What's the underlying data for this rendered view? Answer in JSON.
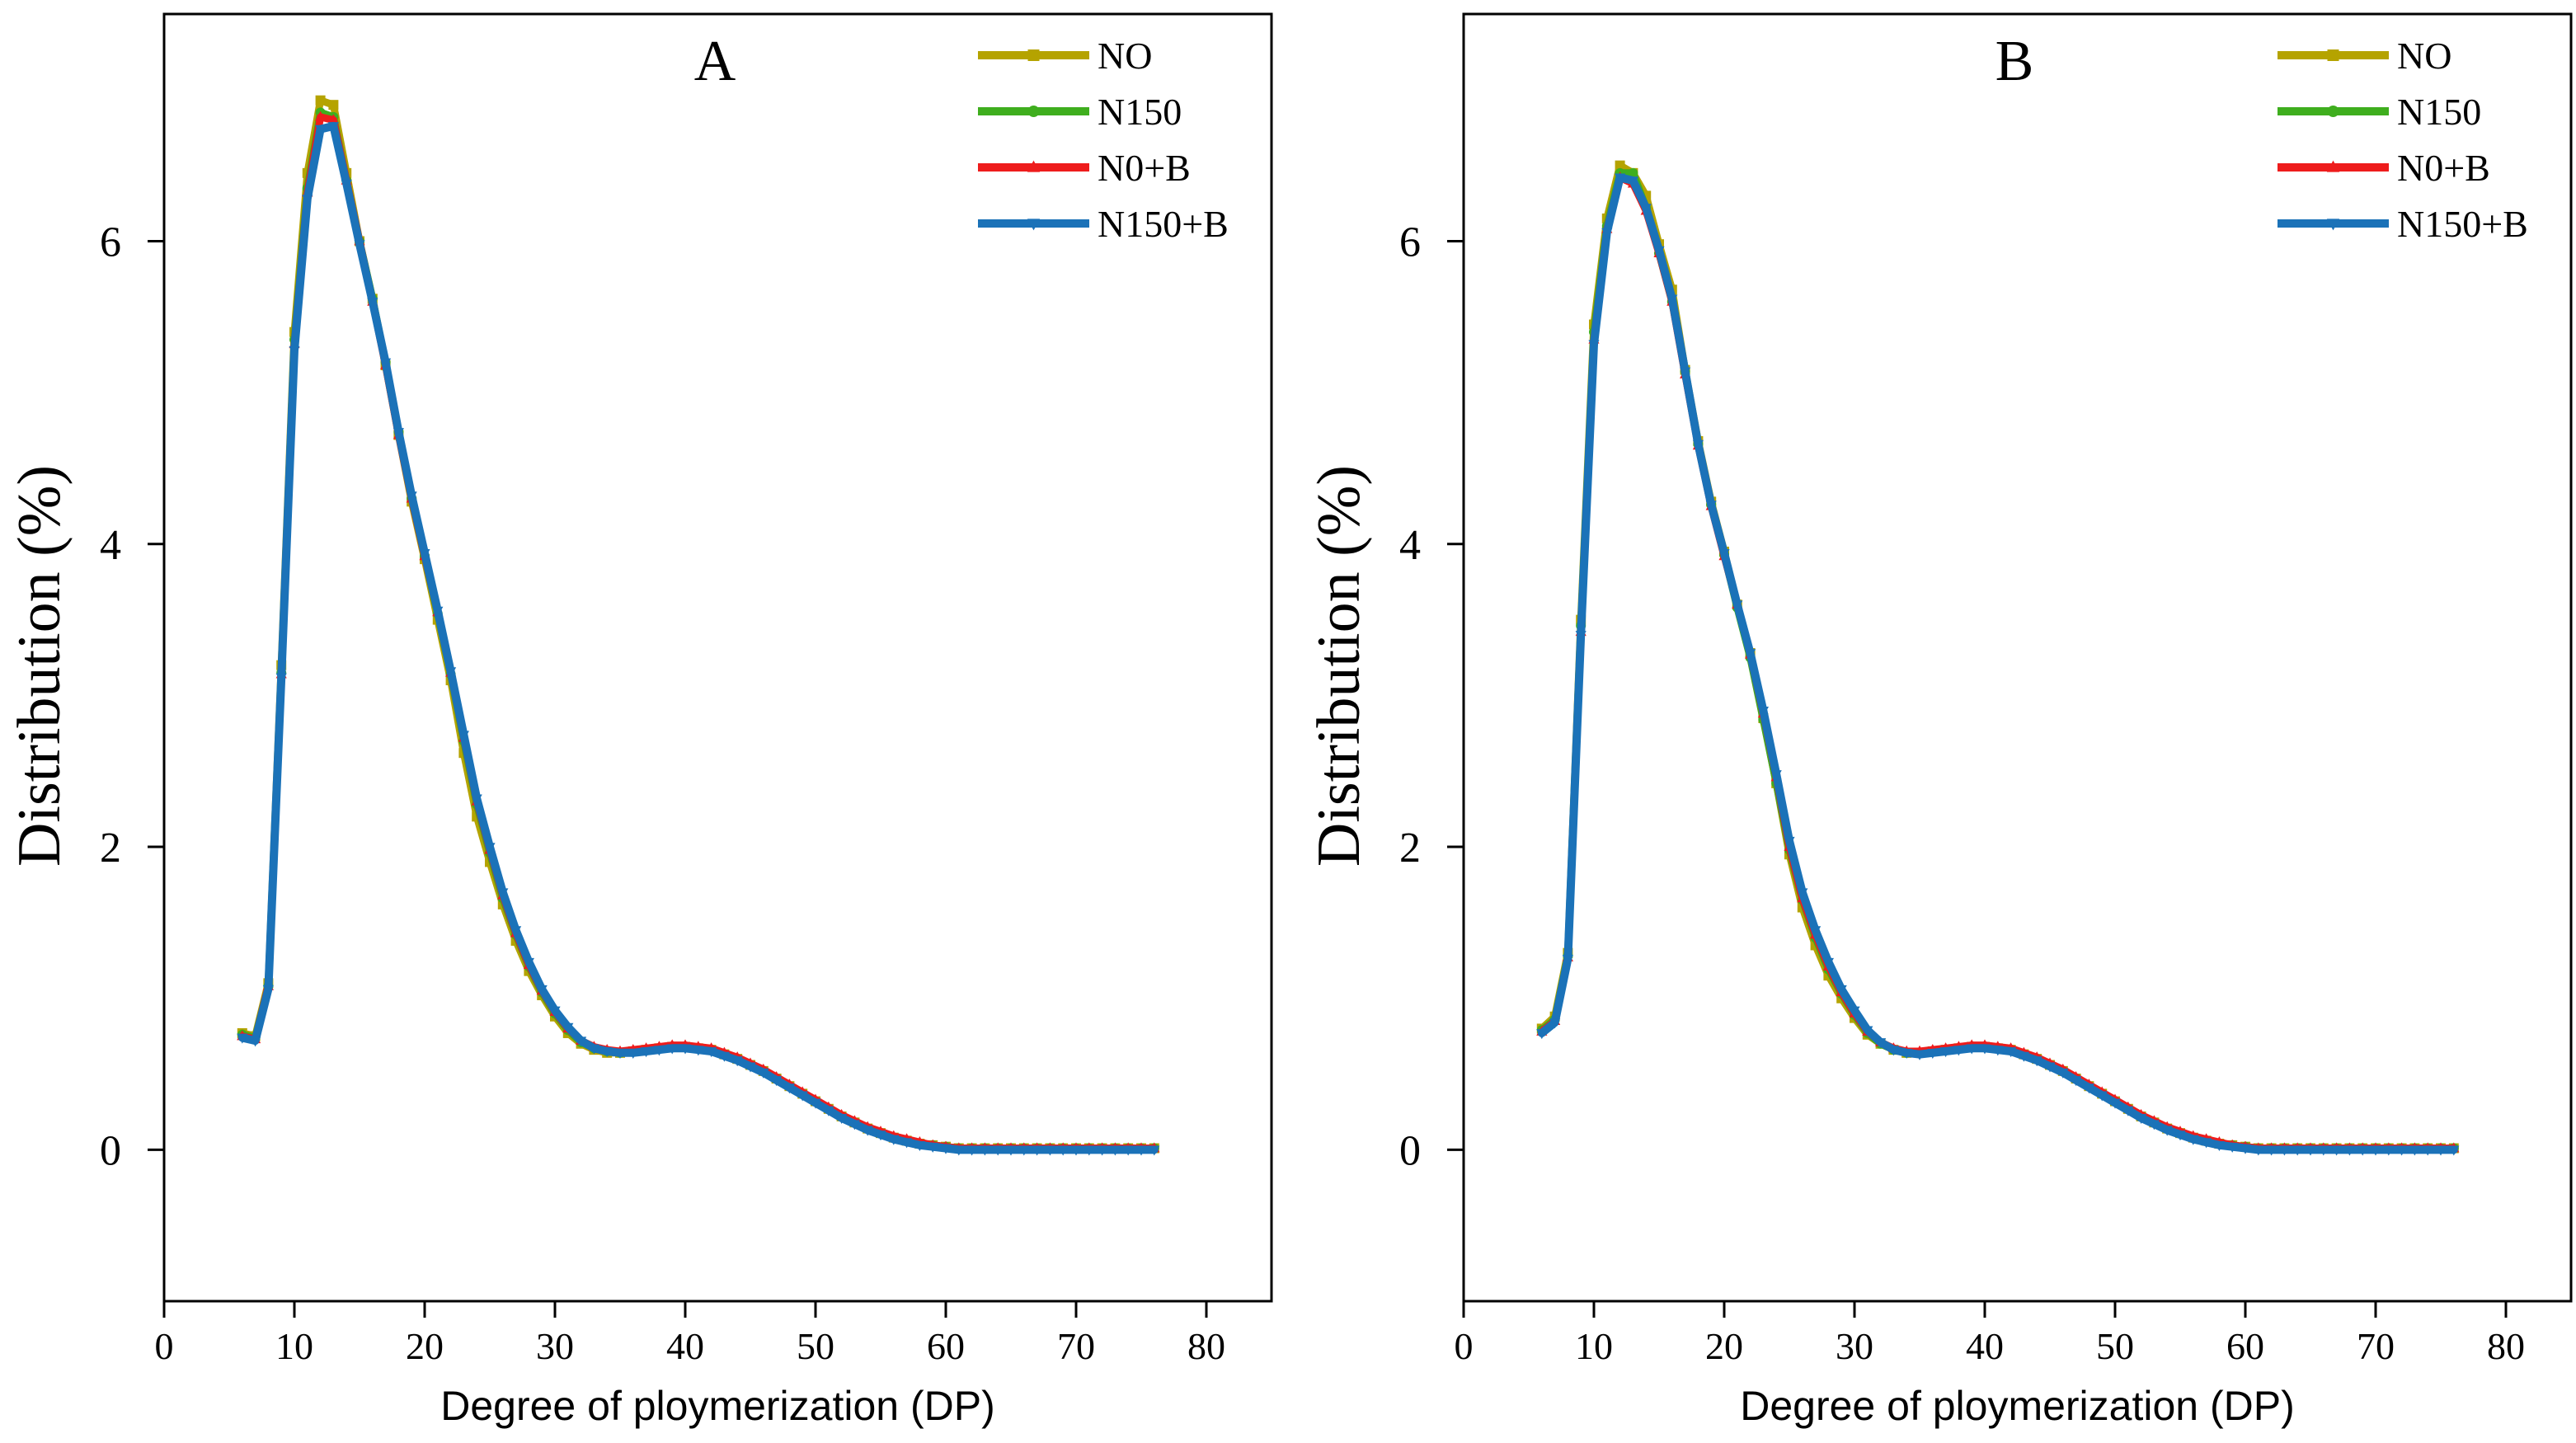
{
  "chart_data": [
    {
      "type": "line",
      "panel_label": "A",
      "xlabel": "Degree of ploymerization (DP)",
      "ylabel": "Distribution (%)",
      "xlim": [
        0,
        85
      ],
      "ylim": [
        -1,
        7.5
      ],
      "xticks": [
        0,
        10,
        20,
        30,
        40,
        50,
        60,
        70,
        80
      ],
      "yticks": [
        0,
        2,
        4,
        6
      ],
      "legend_position": "top-right",
      "x": [
        6,
        7,
        8,
        9,
        10,
        11,
        12,
        13,
        14,
        15,
        16,
        17,
        18,
        19,
        20,
        21,
        22,
        23,
        24,
        25,
        26,
        27,
        28,
        29,
        30,
        31,
        32,
        33,
        34,
        35,
        36,
        37,
        38,
        39,
        40,
        41,
        42,
        43,
        44,
        45,
        46,
        47,
        48,
        49,
        50,
        51,
        52,
        53,
        54,
        55,
        56,
        57,
        58,
        59,
        60,
        61,
        62,
        63,
        64,
        65,
        66,
        67,
        68,
        69,
        70,
        71,
        72,
        73,
        74,
        75,
        76
      ],
      "series": [
        {
          "name": "NO",
          "color": "#b5a300",
          "marker": "square",
          "values": [
            0.77,
            0.75,
            1.1,
            3.2,
            5.4,
            6.45,
            6.93,
            6.9,
            6.45,
            6.0,
            5.62,
            5.18,
            4.72,
            4.28,
            3.9,
            3.5,
            3.1,
            2.62,
            2.2,
            1.9,
            1.62,
            1.38,
            1.18,
            1.02,
            0.88,
            0.77,
            0.7,
            0.66,
            0.64,
            0.64,
            0.65,
            0.66,
            0.67,
            0.68,
            0.68,
            0.67,
            0.66,
            0.63,
            0.6,
            0.56,
            0.52,
            0.47,
            0.42,
            0.37,
            0.32,
            0.27,
            0.22,
            0.18,
            0.14,
            0.11,
            0.08,
            0.06,
            0.04,
            0.03,
            0.02,
            0.01,
            0.01,
            0.01,
            0.01,
            0.01,
            0.01,
            0.01,
            0.01,
            0.01,
            0.01,
            0.01,
            0.01,
            0.01,
            0.01,
            0.01,
            0.01
          ]
        },
        {
          "name": "N150",
          "color": "#3fae1e",
          "marker": "circle",
          "values": [
            0.76,
            0.74,
            1.08,
            3.15,
            5.35,
            6.35,
            6.85,
            6.82,
            6.4,
            6.0,
            5.62,
            5.2,
            4.74,
            4.3,
            3.92,
            3.54,
            3.14,
            2.7,
            2.28,
            1.96,
            1.66,
            1.42,
            1.21,
            1.04,
            0.9,
            0.79,
            0.71,
            0.67,
            0.65,
            0.64,
            0.65,
            0.66,
            0.67,
            0.68,
            0.68,
            0.67,
            0.66,
            0.63,
            0.6,
            0.56,
            0.52,
            0.47,
            0.42,
            0.37,
            0.32,
            0.27,
            0.22,
            0.18,
            0.14,
            0.11,
            0.08,
            0.06,
            0.04,
            0.03,
            0.02,
            0.01,
            0.01,
            0.01,
            0.01,
            0.01,
            0.01,
            0.01,
            0.01,
            0.01,
            0.01,
            0.01,
            0.01,
            0.01,
            0.01,
            0.01,
            0.01
          ]
        },
        {
          "name": "N0+B",
          "color": "#ee1c1c",
          "marker": "triangle-up",
          "values": [
            0.75,
            0.73,
            1.08,
            3.14,
            5.32,
            6.32,
            6.82,
            6.8,
            6.4,
            6.0,
            5.6,
            5.18,
            4.72,
            4.3,
            3.92,
            3.55,
            3.15,
            2.72,
            2.3,
            1.98,
            1.68,
            1.43,
            1.22,
            1.05,
            0.91,
            0.8,
            0.72,
            0.68,
            0.66,
            0.65,
            0.66,
            0.67,
            0.68,
            0.69,
            0.69,
            0.68,
            0.67,
            0.64,
            0.61,
            0.57,
            0.53,
            0.48,
            0.43,
            0.38,
            0.33,
            0.28,
            0.23,
            0.19,
            0.15,
            0.12,
            0.09,
            0.07,
            0.05,
            0.03,
            0.02,
            0.01,
            0.01,
            0.01,
            0.01,
            0.01,
            0.01,
            0.01,
            0.01,
            0.01,
            0.01,
            0.01,
            0.01,
            0.01,
            0.01,
            0.01,
            0.01
          ]
        },
        {
          "name": "N150+B",
          "color": "#1b72b8",
          "marker": "triangle-down",
          "values": [
            0.74,
            0.72,
            1.06,
            3.12,
            5.28,
            6.28,
            6.74,
            6.76,
            6.38,
            5.98,
            5.6,
            5.2,
            4.74,
            4.32,
            3.94,
            3.56,
            3.16,
            2.74,
            2.32,
            2.0,
            1.7,
            1.45,
            1.24,
            1.06,
            0.92,
            0.81,
            0.72,
            0.67,
            0.65,
            0.64,
            0.64,
            0.65,
            0.66,
            0.67,
            0.67,
            0.66,
            0.65,
            0.62,
            0.59,
            0.55,
            0.51,
            0.46,
            0.41,
            0.36,
            0.31,
            0.26,
            0.21,
            0.17,
            0.13,
            0.1,
            0.07,
            0.05,
            0.03,
            0.02,
            0.01,
            0.0,
            0.0,
            0.0,
            0.0,
            0.0,
            0.0,
            0.0,
            0.0,
            0.0,
            0.0,
            0.0,
            0.0,
            0.0,
            0.0,
            0.0,
            0.0
          ]
        }
      ]
    },
    {
      "type": "line",
      "panel_label": "B",
      "xlabel": "Degree of ploymerization (DP)",
      "ylabel": "Distribution (%)",
      "xlim": [
        0,
        85
      ],
      "ylim": [
        -1,
        7.5
      ],
      "xticks": [
        0,
        10,
        20,
        30,
        40,
        50,
        60,
        70,
        80
      ],
      "yticks": [
        0,
        2,
        4,
        6
      ],
      "legend_position": "top-right",
      "x": [
        6,
        7,
        8,
        9,
        10,
        11,
        12,
        13,
        14,
        15,
        16,
        17,
        18,
        19,
        20,
        21,
        22,
        23,
        24,
        25,
        26,
        27,
        28,
        29,
        30,
        31,
        32,
        33,
        34,
        35,
        36,
        37,
        38,
        39,
        40,
        41,
        42,
        43,
        44,
        45,
        46,
        47,
        48,
        49,
        50,
        51,
        52,
        53,
        54,
        55,
        56,
        57,
        58,
        59,
        60,
        61,
        62,
        63,
        64,
        65,
        66,
        67,
        68,
        69,
        70,
        71,
        72,
        73,
        74,
        75,
        76
      ],
      "series": [
        {
          "name": "NO",
          "color": "#b5a300",
          "marker": "square",
          "values": [
            0.8,
            0.88,
            1.3,
            3.5,
            5.45,
            6.15,
            6.5,
            6.45,
            6.3,
            5.98,
            5.68,
            5.15,
            4.68,
            4.28,
            3.95,
            3.6,
            3.28,
            2.85,
            2.42,
            1.95,
            1.6,
            1.35,
            1.15,
            1.0,
            0.87,
            0.76,
            0.7,
            0.66,
            0.64,
            0.64,
            0.65,
            0.66,
            0.67,
            0.68,
            0.68,
            0.67,
            0.66,
            0.63,
            0.6,
            0.56,
            0.52,
            0.47,
            0.42,
            0.37,
            0.32,
            0.27,
            0.22,
            0.18,
            0.14,
            0.11,
            0.08,
            0.06,
            0.04,
            0.03,
            0.02,
            0.01,
            0.01,
            0.01,
            0.01,
            0.01,
            0.01,
            0.01,
            0.01,
            0.01,
            0.01,
            0.01,
            0.01,
            0.01,
            0.01,
            0.01,
            0.01
          ]
        },
        {
          "name": "N150",
          "color": "#3fae1e",
          "marker": "circle",
          "values": [
            0.79,
            0.86,
            1.28,
            3.46,
            5.4,
            6.1,
            6.45,
            6.45,
            6.22,
            5.92,
            5.6,
            5.14,
            4.66,
            4.26,
            3.93,
            3.58,
            3.25,
            2.84,
            2.42,
            1.98,
            1.65,
            1.4,
            1.19,
            1.03,
            0.89,
            0.77,
            0.7,
            0.66,
            0.64,
            0.64,
            0.65,
            0.66,
            0.67,
            0.68,
            0.68,
            0.67,
            0.66,
            0.63,
            0.6,
            0.56,
            0.52,
            0.47,
            0.42,
            0.37,
            0.32,
            0.27,
            0.22,
            0.18,
            0.14,
            0.11,
            0.08,
            0.06,
            0.04,
            0.03,
            0.02,
            0.01,
            0.01,
            0.01,
            0.01,
            0.01,
            0.01,
            0.01,
            0.01,
            0.01,
            0.01,
            0.01,
            0.01,
            0.01,
            0.01,
            0.01,
            0.01
          ]
        },
        {
          "name": "N0+B",
          "color": "#ee1c1c",
          "marker": "triangle-up",
          "values": [
            0.78,
            0.85,
            1.27,
            3.42,
            5.35,
            6.08,
            6.42,
            6.38,
            6.2,
            5.92,
            5.6,
            5.12,
            4.65,
            4.25,
            3.92,
            3.6,
            3.27,
            2.88,
            2.46,
            2.0,
            1.66,
            1.42,
            1.21,
            1.04,
            0.9,
            0.78,
            0.71,
            0.67,
            0.65,
            0.65,
            0.66,
            0.67,
            0.68,
            0.69,
            0.69,
            0.68,
            0.67,
            0.64,
            0.61,
            0.57,
            0.53,
            0.48,
            0.43,
            0.38,
            0.33,
            0.28,
            0.23,
            0.19,
            0.15,
            0.12,
            0.09,
            0.07,
            0.05,
            0.03,
            0.02,
            0.01,
            0.01,
            0.01,
            0.01,
            0.01,
            0.01,
            0.01,
            0.01,
            0.01,
            0.01,
            0.01,
            0.01,
            0.01,
            0.01,
            0.01,
            0.01
          ]
        },
        {
          "name": "N150+B",
          "color": "#1b72b8",
          "marker": "triangle-down",
          "values": [
            0.77,
            0.84,
            1.26,
            3.4,
            5.32,
            6.06,
            6.42,
            6.4,
            6.22,
            5.94,
            5.62,
            5.14,
            4.66,
            4.26,
            3.94,
            3.6,
            3.28,
            2.9,
            2.48,
            2.04,
            1.7,
            1.45,
            1.24,
            1.06,
            0.92,
            0.79,
            0.71,
            0.66,
            0.64,
            0.63,
            0.64,
            0.65,
            0.66,
            0.67,
            0.67,
            0.66,
            0.65,
            0.62,
            0.59,
            0.55,
            0.51,
            0.46,
            0.41,
            0.36,
            0.31,
            0.26,
            0.21,
            0.17,
            0.13,
            0.1,
            0.07,
            0.05,
            0.03,
            0.02,
            0.01,
            0.0,
            0.0,
            0.0,
            0.0,
            0.0,
            0.0,
            0.0,
            0.0,
            0.0,
            0.0,
            0.0,
            0.0,
            0.0,
            0.0,
            0.0,
            0.0
          ]
        }
      ]
    }
  ]
}
